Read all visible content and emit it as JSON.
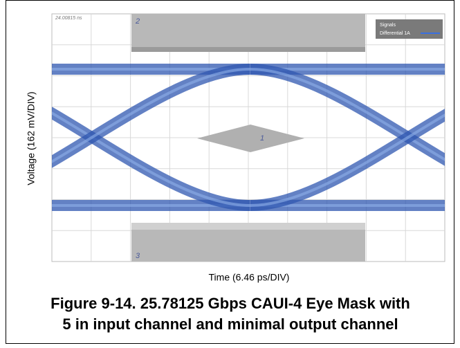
{
  "screen": {
    "timestamp": "24.00815 ns",
    "mask_labels": [
      "2",
      "1",
      "3"
    ],
    "legend": {
      "title": "Signals",
      "entries": [
        "Differential 1A"
      ]
    },
    "x_axis_label": "Time (6.46 ps/DIV)",
    "y_axis_label": "Voltage (162 mV/DIV)"
  },
  "caption": [
    "Figure 9-14. 25.78125 Gbps CAUI-4 Eye Mask with",
    "5 in input channel and minimal output channel"
  ]
}
